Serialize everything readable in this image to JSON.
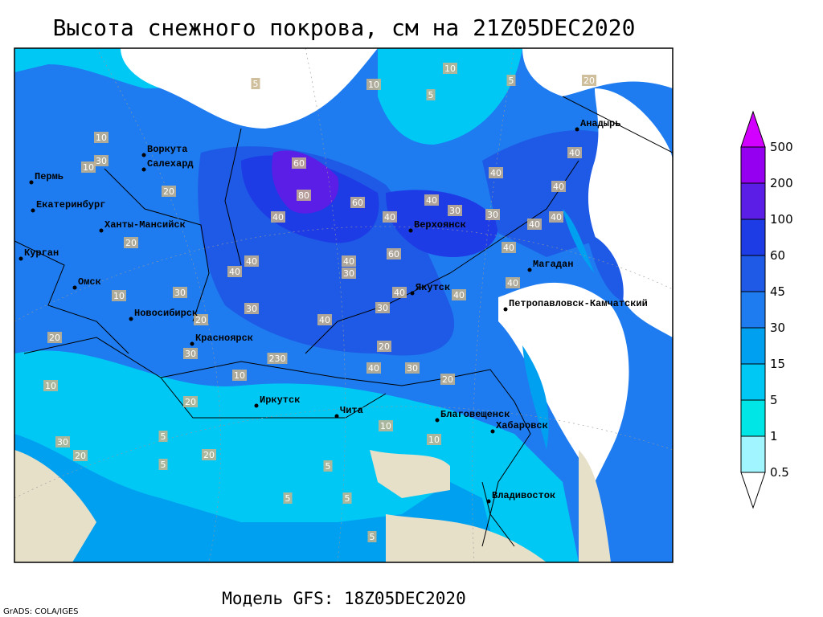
{
  "title": "Высота снежного покрова, см на 21Z05DEC2020",
  "footer": "Модель GFS: 18Z05DEC2020",
  "credit": "GrADS: COLA/IGES",
  "legend": {
    "levels": [
      0.5,
      1,
      5,
      15,
      30,
      45,
      60,
      100,
      200,
      500
    ],
    "colors": [
      "#ffffff",
      "#a0f5ff",
      "#00e6e6",
      "#00c8f5",
      "#00a0f0",
      "#1e7cf0",
      "#1e5ae6",
      "#1e3ce6",
      "#5a1ee6",
      "#9600f0",
      "#d200ff"
    ]
  },
  "cities": [
    "Воркута",
    "Салехард",
    "Пермь",
    "Екатеринбург",
    "Ханты-Мансийск",
    "Курган",
    "Омск",
    "Новосибирск",
    "Красноярск",
    "Иркутск",
    "Чита",
    "Верхоянск",
    "Якутск",
    "Магадан",
    "Анадырь",
    "Петропавловск-Камчатский",
    "Благовещенск",
    "Хабаровск",
    "Владивосток"
  ],
  "contour_labels": [
    10,
    10,
    5,
    5,
    5,
    20,
    10,
    10,
    30,
    20,
    60,
    80,
    60,
    40,
    40,
    30,
    40,
    40,
    30,
    40,
    40,
    40,
    40,
    20,
    30,
    40,
    40,
    40,
    30,
    60,
    40,
    30,
    40,
    40,
    30,
    40,
    20,
    20,
    20,
    30,
    230,
    40,
    30,
    20,
    10,
    10,
    20,
    30,
    20,
    5,
    20,
    5,
    5,
    10,
    10,
    5,
    5,
    5,
    40,
    10
  ]
}
